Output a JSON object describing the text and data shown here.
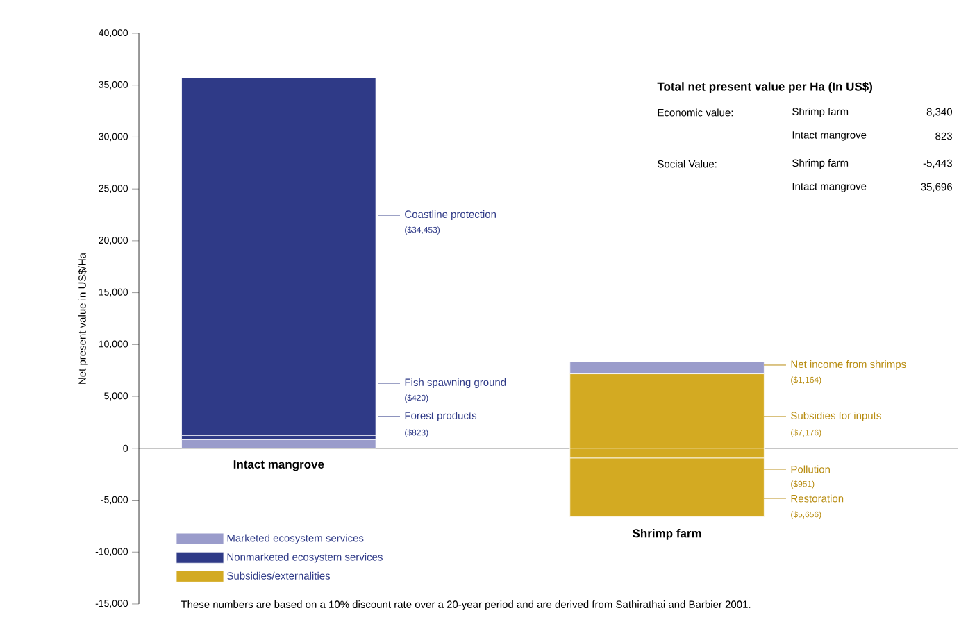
{
  "chart_data": {
    "type": "bar",
    "stacked": true,
    "categories": [
      "Intact mangrove",
      "Shrimp farm"
    ],
    "ylabel": "Net present value in US$/Ha",
    "ylim": [
      -15000,
      40000
    ],
    "yticks": [
      {
        "value": -15000,
        "label": "-15,000"
      },
      {
        "value": -10000,
        "label": "-10,000"
      },
      {
        "value": -5000,
        "label": "-5,000"
      },
      0,
      {
        "value": 5000,
        "label": "5,000"
      },
      {
        "value": 10000,
        "label": "10,000"
      },
      {
        "value": 15000,
        "label": "15,000"
      },
      {
        "value": 20000,
        "label": "20,000"
      },
      {
        "value": 25000,
        "label": "25,000"
      },
      {
        "value": 30000,
        "label": "30,000"
      },
      {
        "value": 35000,
        "label": "35,000"
      },
      {
        "value": 40000,
        "label": "40,000"
      }
    ],
    "legend": "bottom left",
    "series": [
      {
        "name": "Marketed ecosystem services",
        "color": "#9a9ccb",
        "values": [
          823,
          null
        ]
      },
      {
        "name": "Nonmarketed ecosystem services",
        "color": "#2f3a87",
        "values": [
          420,
          null
        ]
      },
      {
        "color": "#2f3a87",
        "values": [
          34453,
          null
        ]
      },
      {
        "name": "Subsidies/externalities",
        "color": "#d3aa22",
        "values": [
          null,
          7176
        ]
      },
      {
        "color": "#9a9ccb",
        "values": [
          null,
          1164
        ]
      },
      {
        "color": "#d3aa22",
        "values": [
          null,
          -951
        ]
      },
      {
        "color": "#d3aa22",
        "values": [
          null,
          -5656
        ]
      }
    ],
    "annotations": [
      "**Total net present value per Ha (In US$)**",
      "Economic value:",
      "Shrimp farm",
      "8,340",
      "Intact mangrove",
      "823",
      "Social Value:",
      "Shrimp farm",
      "-5,443",
      "Intact mangrove",
      "35,696",
      "These numbers are based on a 10% discount rate over a 20-year period and are derived from Sathirathai and Barbier 2001.",
      "Coastline protection",
      "($34,453)",
      "Fish spawning ground",
      "($420)",
      "Forest products",
      "($823)",
      "Net income from shrimps",
      "($1,164)",
      "Subsidies for inputs",
      "($7,176)",
      "Pollution",
      "($951)",
      "Restoration",
      "($5,656)"
    ]
  }
}
